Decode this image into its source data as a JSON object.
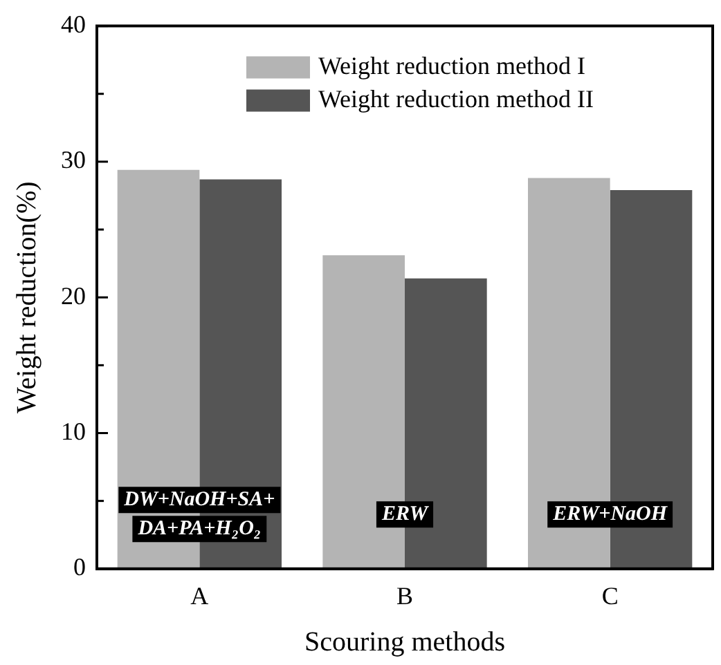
{
  "chart_data": {
    "type": "bar",
    "xlabel": "Scouring methods",
    "ylabel": "Weight reduction(%)",
    "categories": [
      "A",
      "B",
      "C"
    ],
    "series": [
      {
        "name": "Weight reduction method I",
        "color": "#b4b4b4",
        "values": [
          29.4,
          23.1,
          28.8
        ]
      },
      {
        "name": "Weight reduction method II",
        "color": "#555555",
        "values": [
          28.7,
          21.4,
          27.9
        ]
      }
    ],
    "ylim": [
      0,
      40
    ],
    "yticks": [
      0,
      {
        "value": 5,
        "label": null
      },
      10,
      {
        "value": 15,
        "label": null
      },
      20,
      {
        "value": 25,
        "label": null
      },
      30,
      {
        "value": 35,
        "label": null
      },
      40
    ],
    "grid": false,
    "legend": "top",
    "annotations": [
      {
        "text": "DW+NaOH+SA+DA+PA+H₂O₂",
        "x": "A",
        "y": 4
      },
      {
        "text": "ERW",
        "x": "B",
        "y": 4
      },
      {
        "text": "ERW+NaOH",
        "x": "C",
        "y": 4
      }
    ]
  }
}
